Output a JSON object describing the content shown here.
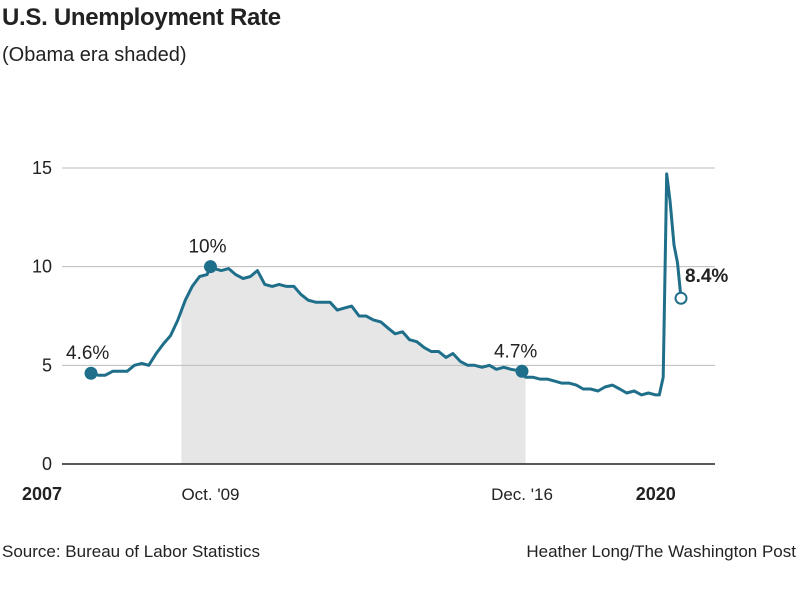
{
  "title": "U.S. Unemployment Rate",
  "subtitle": "(Obama era shaded)",
  "source": "Source: Bureau of Labor Statistics",
  "credit": "Heather Long/The Washington Post",
  "colors": {
    "line": "#1f6f8b",
    "shade": "#e6e6e6",
    "grid": "#bdbdbd",
    "axis": "#222222"
  },
  "chart_data": {
    "type": "line",
    "title": "U.S. Unemployment Rate",
    "subtitle": "(Obama era shaded)",
    "xlim": [
      2007.0,
      2020.67
    ],
    "ylim": [
      0,
      15
    ],
    "yticks": [
      0,
      5,
      10,
      15
    ],
    "xticks": [
      {
        "x": 2007.0,
        "label": "2007",
        "bold": true
      },
      {
        "x": 2009.75,
        "label": "Oct. '09",
        "bold": false
      },
      {
        "x": 2016.92,
        "label": "Dec. '16",
        "bold": false
      },
      {
        "x": 2020.0,
        "label": "2020",
        "bold": true
      }
    ],
    "shaded_region": {
      "from": 2009.08,
      "to": 2017.0,
      "label": "Obama era"
    },
    "series": [
      {
        "points": [
          [
            2007.0,
            4.6
          ],
          [
            2007.17,
            4.5
          ],
          [
            2007.33,
            4.5
          ],
          [
            2007.5,
            4.7
          ],
          [
            2007.67,
            4.7
          ],
          [
            2007.83,
            4.7
          ],
          [
            2008.0,
            5.0
          ],
          [
            2008.17,
            5.1
          ],
          [
            2008.33,
            5.0
          ],
          [
            2008.5,
            5.6
          ],
          [
            2008.67,
            6.1
          ],
          [
            2008.83,
            6.5
          ],
          [
            2009.0,
            7.3
          ],
          [
            2009.17,
            8.3
          ],
          [
            2009.33,
            9.0
          ],
          [
            2009.5,
            9.5
          ],
          [
            2009.67,
            9.6
          ],
          [
            2009.75,
            10.0
          ],
          [
            2009.83,
            9.9
          ],
          [
            2010.0,
            9.8
          ],
          [
            2010.17,
            9.9
          ],
          [
            2010.33,
            9.6
          ],
          [
            2010.5,
            9.4
          ],
          [
            2010.67,
            9.5
          ],
          [
            2010.83,
            9.8
          ],
          [
            2011.0,
            9.1
          ],
          [
            2011.17,
            9.0
          ],
          [
            2011.33,
            9.1
          ],
          [
            2011.5,
            9.0
          ],
          [
            2011.67,
            9.0
          ],
          [
            2011.83,
            8.6
          ],
          [
            2012.0,
            8.3
          ],
          [
            2012.17,
            8.2
          ],
          [
            2012.33,
            8.2
          ],
          [
            2012.5,
            8.2
          ],
          [
            2012.67,
            7.8
          ],
          [
            2012.83,
            7.9
          ],
          [
            2013.0,
            8.0
          ],
          [
            2013.17,
            7.5
          ],
          [
            2013.33,
            7.5
          ],
          [
            2013.5,
            7.3
          ],
          [
            2013.67,
            7.2
          ],
          [
            2013.83,
            6.9
          ],
          [
            2014.0,
            6.6
          ],
          [
            2014.17,
            6.7
          ],
          [
            2014.33,
            6.3
          ],
          [
            2014.5,
            6.2
          ],
          [
            2014.67,
            5.9
          ],
          [
            2014.83,
            5.7
          ],
          [
            2015.0,
            5.7
          ],
          [
            2015.17,
            5.4
          ],
          [
            2015.33,
            5.6
          ],
          [
            2015.5,
            5.2
          ],
          [
            2015.67,
            5.0
          ],
          [
            2015.83,
            5.0
          ],
          [
            2016.0,
            4.9
          ],
          [
            2016.17,
            5.0
          ],
          [
            2016.33,
            4.8
          ],
          [
            2016.5,
            4.9
          ],
          [
            2016.67,
            4.8
          ],
          [
            2016.92,
            4.7
          ],
          [
            2017.0,
            4.4
          ],
          [
            2017.17,
            4.4
          ],
          [
            2017.33,
            4.3
          ],
          [
            2017.5,
            4.3
          ],
          [
            2017.67,
            4.2
          ],
          [
            2017.83,
            4.1
          ],
          [
            2018.0,
            4.1
          ],
          [
            2018.17,
            4.0
          ],
          [
            2018.33,
            3.8
          ],
          [
            2018.5,
            3.8
          ],
          [
            2018.67,
            3.7
          ],
          [
            2018.83,
            3.9
          ],
          [
            2019.0,
            4.0
          ],
          [
            2019.17,
            3.8
          ],
          [
            2019.33,
            3.6
          ],
          [
            2019.5,
            3.7
          ],
          [
            2019.67,
            3.5
          ],
          [
            2019.83,
            3.6
          ],
          [
            2020.0,
            3.5
          ],
          [
            2020.08,
            3.5
          ],
          [
            2020.17,
            4.4
          ],
          [
            2020.25,
            14.7
          ],
          [
            2020.33,
            13.3
          ],
          [
            2020.42,
            11.1
          ],
          [
            2020.5,
            10.2
          ],
          [
            2020.58,
            8.4
          ]
        ]
      }
    ],
    "annotations": [
      {
        "x": 2007.0,
        "y": 4.6,
        "label": "4.6%",
        "bold": false,
        "marker": "filled"
      },
      {
        "x": 2009.75,
        "y": 10.0,
        "label": "10%",
        "bold": false,
        "marker": "filled"
      },
      {
        "x": 2016.92,
        "y": 4.7,
        "label": "4.7%",
        "bold": false,
        "marker": "filled"
      },
      {
        "x": 2020.58,
        "y": 8.4,
        "label": "8.4%",
        "bold": true,
        "marker": "open"
      }
    ]
  }
}
